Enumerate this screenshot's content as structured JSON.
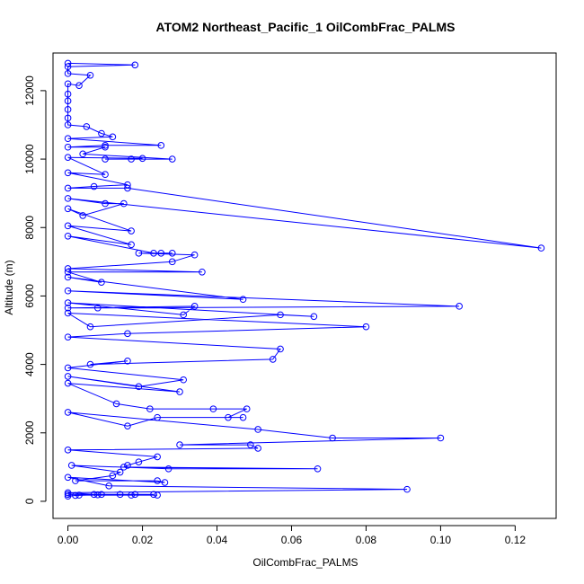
{
  "chart_data": {
    "type": "scatter",
    "title": "ATOM2 Northeast_Pacific_1 OilCombFrac_PALMS",
    "xlabel": "OilCombFrac_PALMS",
    "ylabel": "Altitude (m)",
    "xlim": [
      -0.004,
      0.131
    ],
    "ylim": [
      -500,
      13100
    ],
    "x_ticks": [
      0.0,
      0.02,
      0.04,
      0.06,
      0.08,
      0.1,
      0.12
    ],
    "x_tick_labels": [
      "0.00",
      "0.02",
      "0.04",
      "0.06",
      "0.08",
      "0.10",
      "0.12"
    ],
    "y_ticks": [
      0,
      2000,
      4000,
      6000,
      8000,
      10000,
      12000
    ],
    "y_tick_labels": [
      "0",
      "2000",
      "4000",
      "6000",
      "8000",
      "10000",
      "12000"
    ],
    "grid": false,
    "legend": "none",
    "series": [
      {
        "color": "#0000ff",
        "marker": "open-circle",
        "line": true,
        "points": [
          [
            0.0,
            12800
          ],
          [
            0.018,
            12750
          ],
          [
            0.0,
            12700
          ],
          [
            0.0,
            12500
          ],
          [
            0.006,
            12450
          ],
          [
            0.003,
            12150
          ],
          [
            0.0,
            12200
          ],
          [
            0.0,
            11900
          ],
          [
            0.0,
            11700
          ],
          [
            0.0,
            11450
          ],
          [
            0.0,
            11200
          ],
          [
            0.0,
            11000
          ],
          [
            0.005,
            10950
          ],
          [
            0.009,
            10750
          ],
          [
            0.012,
            10650
          ],
          [
            0.0,
            10600
          ],
          [
            0.025,
            10400
          ],
          [
            0.01,
            10400
          ],
          [
            0.0,
            10350
          ],
          [
            0.01,
            10350
          ],
          [
            0.004,
            10150
          ],
          [
            0.028,
            10000
          ],
          [
            0.01,
            10000
          ],
          [
            0.017,
            10000
          ],
          [
            0.02,
            10020
          ],
          [
            0.0,
            10050
          ],
          [
            0.01,
            9550
          ],
          [
            0.0,
            9600
          ],
          [
            0.016,
            9250
          ],
          [
            0.007,
            9200
          ],
          [
            0.0,
            9150
          ],
          [
            0.016,
            9150
          ],
          [
            0.127,
            7400
          ],
          [
            0.0,
            8850
          ],
          [
            0.01,
            8700
          ],
          [
            0.015,
            8700
          ],
          [
            0.004,
            8350
          ],
          [
            0.0,
            8550
          ],
          [
            0.017,
            7900
          ],
          [
            0.0,
            8050
          ],
          [
            0.017,
            7500
          ],
          [
            0.0,
            7750
          ],
          [
            0.023,
            7250
          ],
          [
            0.025,
            7250
          ],
          [
            0.028,
            7250
          ],
          [
            0.019,
            7250
          ],
          [
            0.034,
            7200
          ],
          [
            0.028,
            7000
          ],
          [
            0.0,
            6800
          ],
          [
            0.036,
            6700
          ],
          [
            0.0,
            6700
          ],
          [
            0.009,
            6400
          ],
          [
            0.0,
            6550
          ],
          [
            0.047,
            5900
          ],
          [
            0.0,
            6150
          ],
          [
            0.105,
            5700
          ],
          [
            0.008,
            5650
          ],
          [
            0.0,
            5650
          ],
          [
            0.034,
            5700
          ],
          [
            0.031,
            5450
          ],
          [
            0.0,
            5800
          ],
          [
            0.066,
            5400
          ],
          [
            0.057,
            5450
          ],
          [
            0.006,
            5100
          ],
          [
            0.0,
            5500
          ],
          [
            0.08,
            5100
          ],
          [
            0.016,
            4900
          ],
          [
            0.0,
            4800
          ],
          [
            0.057,
            4450
          ],
          [
            0.055,
            4150
          ],
          [
            0.006,
            4000
          ],
          [
            0.016,
            4100
          ],
          [
            0.0,
            3900
          ],
          [
            0.031,
            3550
          ],
          [
            0.019,
            3350
          ],
          [
            0.0,
            3650
          ],
          [
            0.03,
            3200
          ],
          [
            0.0,
            3450
          ],
          [
            0.013,
            2850
          ],
          [
            0.022,
            2700
          ],
          [
            0.039,
            2700
          ],
          [
            0.048,
            2700
          ],
          [
            0.043,
            2450
          ],
          [
            0.047,
            2450
          ],
          [
            0.024,
            2450
          ],
          [
            0.016,
            2200
          ],
          [
            0.0,
            2600
          ],
          [
            0.051,
            2100
          ],
          [
            0.071,
            1850
          ],
          [
            0.1,
            1850
          ],
          [
            0.03,
            1650
          ],
          [
            0.049,
            1650
          ],
          [
            0.051,
            1550
          ],
          [
            0.0,
            1500
          ],
          [
            0.024,
            1300
          ],
          [
            0.019,
            1150
          ],
          [
            0.016,
            1050
          ],
          [
            0.015,
            1000
          ],
          [
            0.067,
            950
          ],
          [
            0.027,
            950
          ],
          [
            0.001,
            1050
          ],
          [
            0.014,
            850
          ],
          [
            0.012,
            750
          ],
          [
            0.002,
            600
          ],
          [
            0.024,
            600
          ],
          [
            0.026,
            550
          ],
          [
            0.0,
            700
          ],
          [
            0.011,
            450
          ],
          [
            0.091,
            350
          ],
          [
            0.0,
            250
          ],
          [
            0.007,
            200
          ],
          [
            0.018,
            200
          ],
          [
            0.023,
            200
          ],
          [
            0.014,
            200
          ],
          [
            0.009,
            200
          ],
          [
            0.003,
            180
          ],
          [
            0.017,
            180
          ],
          [
            0.024,
            180
          ],
          [
            0.0,
            200
          ],
          [
            0.008,
            190
          ],
          [
            0.002,
            170
          ],
          [
            0.0,
            150
          ]
        ]
      }
    ]
  }
}
